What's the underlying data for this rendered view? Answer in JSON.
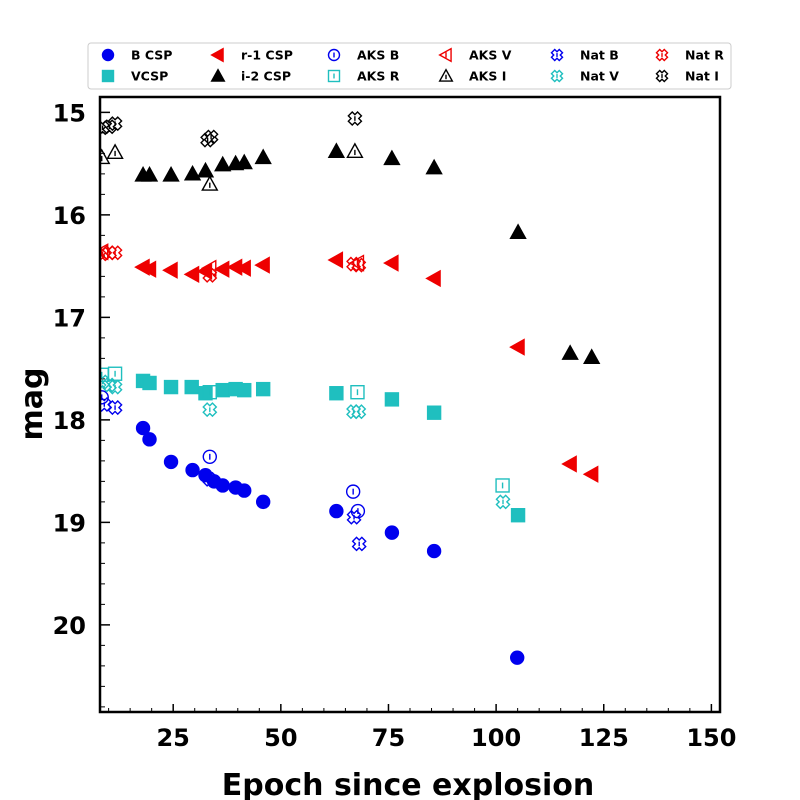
{
  "chart_data": {
    "type": "scatter",
    "xlabel": "Epoch since explosion",
    "ylabel": "mag",
    "xlim": [
      8,
      152
    ],
    "ylim": [
      20.85,
      14.85
    ],
    "y_inverted": true,
    "x_ticks": [
      25,
      50,
      75,
      100,
      125,
      150
    ],
    "y_ticks": [
      15,
      16,
      17,
      18,
      19,
      20
    ],
    "x_tick_labels": [
      "25",
      "50",
      "75",
      "100",
      "125",
      "150"
    ],
    "y_tick_labels": [
      "15",
      "16",
      "17",
      "18",
      "19",
      "20"
    ],
    "grid": false,
    "legend_position": "top",
    "series": [
      {
        "name": "B CSP",
        "marker": "circle",
        "filled": true,
        "color": "#0000ee",
        "points": [
          [
            18,
            18.08
          ],
          [
            19.5,
            18.19
          ],
          [
            24.5,
            18.41
          ],
          [
            29.5,
            18.49
          ],
          [
            32.5,
            18.54
          ],
          [
            34.5,
            18.6
          ],
          [
            36.5,
            18.64
          ],
          [
            39.5,
            18.66
          ],
          [
            41.5,
            18.69
          ],
          [
            45.9,
            18.8
          ],
          [
            62.9,
            18.89
          ],
          [
            75.8,
            19.1
          ],
          [
            85.6,
            19.28
          ],
          [
            104.9,
            20.32
          ]
        ]
      },
      {
        "name": "VCSP",
        "marker": "square",
        "filled": true,
        "color": "#1fbfbf",
        "points": [
          [
            18,
            17.62
          ],
          [
            19.5,
            17.64
          ],
          [
            24.5,
            17.68
          ],
          [
            29.3,
            17.68
          ],
          [
            32.5,
            17.74
          ],
          [
            36.5,
            17.71
          ],
          [
            39.5,
            17.7
          ],
          [
            41.5,
            17.71
          ],
          [
            45.9,
            17.7
          ],
          [
            62.9,
            17.74
          ],
          [
            75.8,
            17.8
          ],
          [
            85.6,
            17.93
          ],
          [
            105.1,
            18.93
          ]
        ]
      },
      {
        "name": "r-1 CSP",
        "marker": "triangle-left",
        "filled": true,
        "color": "#ee0000",
        "points": [
          [
            18,
            16.51
          ],
          [
            19.5,
            16.53
          ],
          [
            24.5,
            16.54
          ],
          [
            29.5,
            16.58
          ],
          [
            32.5,
            16.55
          ],
          [
            36.5,
            16.53
          ],
          [
            39.5,
            16.51
          ],
          [
            41.5,
            16.52
          ],
          [
            45.9,
            16.49
          ],
          [
            62.9,
            16.44
          ],
          [
            75.8,
            16.47
          ],
          [
            85.6,
            16.62
          ],
          [
            105.1,
            17.29
          ],
          [
            117.2,
            18.43
          ],
          [
            122.2,
            18.53
          ]
        ]
      },
      {
        "name": "i-2 CSP",
        "marker": "triangle-up",
        "filled": true,
        "color": "#000000",
        "points": [
          [
            18,
            15.61
          ],
          [
            19.5,
            15.61
          ],
          [
            24.5,
            15.61
          ],
          [
            29.5,
            15.6
          ],
          [
            32.5,
            15.57
          ],
          [
            36.5,
            15.51
          ],
          [
            39.5,
            15.5
          ],
          [
            41.5,
            15.49
          ],
          [
            45.9,
            15.44
          ],
          [
            62.9,
            15.38
          ],
          [
            75.8,
            15.45
          ],
          [
            85.6,
            15.54
          ],
          [
            105.1,
            16.17
          ],
          [
            117.2,
            17.35
          ],
          [
            122.2,
            17.39
          ]
        ]
      },
      {
        "name": "AKS B",
        "marker": "circle",
        "filled": false,
        "color": "#0000ee",
        "points": [
          [
            8.4,
            17.78
          ],
          [
            33.5,
            18.36
          ],
          [
            66.8,
            18.7
          ],
          [
            67.9,
            18.89
          ]
        ]
      },
      {
        "name": "AKS R",
        "marker": "square",
        "filled": false,
        "color": "#1fbfbf",
        "points": [
          [
            8.4,
            17.56
          ],
          [
            11.5,
            17.55
          ],
          [
            33.5,
            17.73
          ],
          [
            67.8,
            17.73
          ],
          [
            101.5,
            18.64
          ]
        ]
      },
      {
        "name": "AKS V",
        "marker": "triangle-left",
        "filled": false,
        "color": "#ee0000",
        "points": [
          [
            8.4,
            16.36
          ],
          [
            33.5,
            16.52
          ],
          [
            67.8,
            16.47
          ]
        ]
      },
      {
        "name": "AKS I",
        "marker": "triangle-up",
        "filled": false,
        "color": "#000000",
        "points": [
          [
            8.4,
            15.44
          ],
          [
            11.5,
            15.39
          ],
          [
            33.5,
            15.7
          ],
          [
            67.2,
            15.38
          ]
        ]
      },
      {
        "name": "Nat B",
        "marker": "cross",
        "filled": false,
        "color": "#0000ee",
        "points": [
          [
            9,
            17.85
          ],
          [
            11.5,
            17.88
          ],
          [
            33.5,
            18.58
          ],
          [
            67,
            18.95
          ],
          [
            68.2,
            19.21
          ]
        ]
      },
      {
        "name": "Nat V",
        "marker": "cross",
        "filled": false,
        "color": "#1fbfbf",
        "points": [
          [
            8.6,
            17.63
          ],
          [
            10.2,
            17.66
          ],
          [
            11.5,
            17.68
          ],
          [
            33.5,
            17.9
          ],
          [
            66.9,
            17.92
          ],
          [
            68.1,
            17.92
          ],
          [
            101.6,
            18.8
          ]
        ]
      },
      {
        "name": "Nat R",
        "marker": "cross",
        "filled": false,
        "color": "#ee0000",
        "points": [
          [
            8.6,
            16.38
          ],
          [
            10.2,
            16.37
          ],
          [
            11.5,
            16.37
          ],
          [
            33.5,
            16.59
          ],
          [
            66.9,
            16.48
          ],
          [
            68.1,
            16.49
          ]
        ]
      },
      {
        "name": "Nat I",
        "marker": "cross",
        "filled": false,
        "color": "#000000",
        "points": [
          [
            8.6,
            15.15
          ],
          [
            10.2,
            15.14
          ],
          [
            11.5,
            15.11
          ],
          [
            33.0,
            15.27
          ],
          [
            33.8,
            15.24
          ],
          [
            67.2,
            15.06
          ]
        ]
      }
    ]
  }
}
